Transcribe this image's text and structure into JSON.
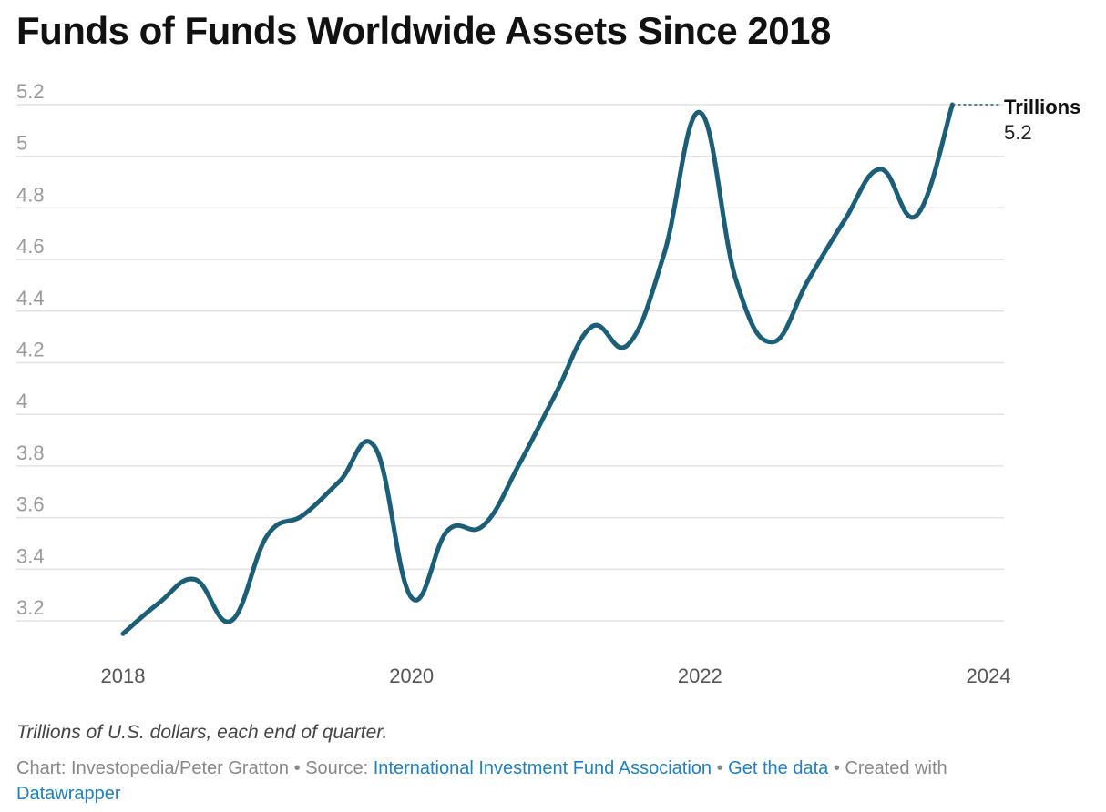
{
  "title": "Funds of Funds Worldwide Assets Since 2018",
  "note": "Trillions of U.S. dollars, each end of quarter.",
  "footer": {
    "chart_label": "Chart: Investopedia/Peter Gratton",
    "source_prefix": "Source:",
    "source_link": "International Investment Fund Association",
    "data_link": "Get the data",
    "created_prefix": "Created with",
    "created_link": "Datawrapper",
    "separator": "•"
  },
  "colors": {
    "line": "#1b5e78",
    "grid": "#e3e3e3",
    "ytick": "#9a9a9a",
    "xtick": "#555555",
    "link": "#1d81c2",
    "muted": "#888888"
  },
  "chart_data": {
    "type": "line",
    "title": "Funds of Funds Worldwide Assets Since 2018",
    "ylabel": "",
    "xlabel": "",
    "ylim": [
      3.1,
      5.2
    ],
    "xlim": [
      2017.5,
      2024
    ],
    "yticks": [
      3.2,
      3.4,
      3.6,
      3.8,
      4,
      4.2,
      4.4,
      4.6,
      4.8,
      5,
      5.2
    ],
    "ytick_labels": [
      "3.2",
      "3.4",
      "3.6",
      "3.8",
      "4",
      "4.2",
      "4.4",
      "4.6",
      "4.8",
      "5",
      "5.2"
    ],
    "xticks": [
      2018,
      2020,
      2022,
      2024
    ],
    "xtick_labels": [
      "2018",
      "2020",
      "2022",
      "2024"
    ],
    "grid": true,
    "series": [
      {
        "name": "Trillions",
        "end_label_value": "5.2",
        "x": [
          2018.0,
          2018.25,
          2018.5,
          2018.75,
          2019.0,
          2019.25,
          2019.5,
          2019.75,
          2020.0,
          2020.25,
          2020.5,
          2020.75,
          2021.0,
          2021.25,
          2021.5,
          2021.75,
          2022.0,
          2022.25,
          2022.5,
          2022.75,
          2023.0,
          2023.25,
          2023.5,
          2023.75
        ],
        "values": [
          3.15,
          3.27,
          3.36,
          3.2,
          3.53,
          3.61,
          3.74,
          3.87,
          3.29,
          3.55,
          3.57,
          3.81,
          4.08,
          4.34,
          4.27,
          4.62,
          5.17,
          4.52,
          4.28,
          4.52,
          4.75,
          4.95,
          4.77,
          5.2
        ]
      }
    ]
  }
}
